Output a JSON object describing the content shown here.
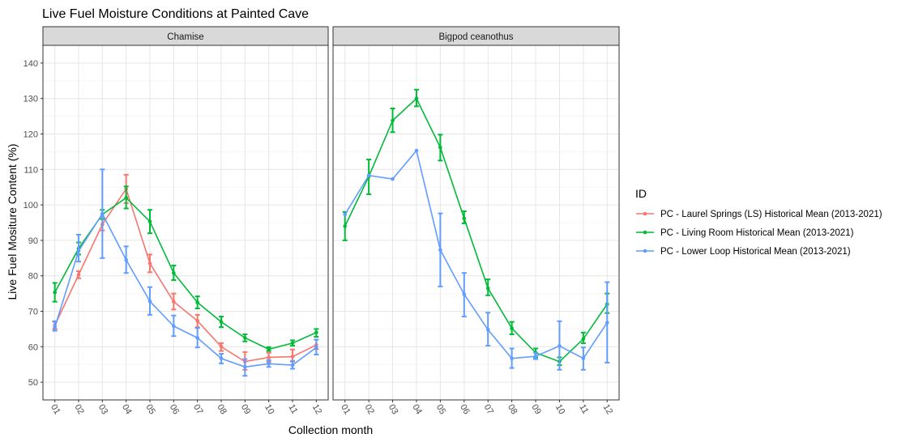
{
  "chart_data": {
    "type": "line",
    "title": "Live Fuel Moisture Conditions at Painted Cave",
    "xlabel": "Collection month",
    "ylabel": "Live Fuel Mositure Content (%)",
    "ylim": [
      45,
      145
    ],
    "yticks": [
      50,
      60,
      70,
      80,
      90,
      100,
      110,
      120,
      130,
      140
    ],
    "categories": [
      "01",
      "02",
      "03",
      "04",
      "05",
      "06",
      "07",
      "08",
      "09",
      "10",
      "11",
      "12"
    ],
    "grid": true,
    "legend": {
      "title": "ID",
      "position": "right",
      "entries": [
        "PC - Laurel Springs (LS) Historical Mean (2013-2021)",
        "PC - Living Room Historical Mean (2013-2021)",
        "PC - Lower Loop Historical Mean (2013-2021)"
      ]
    },
    "panels": [
      {
        "name": "Chamise",
        "series": [
          {
            "name": "PC - Laurel Springs (LS) Historical Mean (2013-2021)",
            "color": "#F8766D",
            "values": [
              66,
              80.3,
              94.5,
              104.5,
              83.5,
              72.7,
              67.3,
              60,
              55.8,
              57,
              57.2,
              60.5
            ],
            "err_low": [
              65,
              79.3,
              92.8,
              100.5,
              81,
              70.5,
              65.5,
              58.8,
              53.5,
              55.7,
              55.8,
              59.3
            ],
            "err_high": [
              67,
              81.3,
              96,
              108.5,
              86,
              75,
              69,
              61,
              58.5,
              58.3,
              59.2,
              62
            ]
          },
          {
            "name": "PC - Living Room Historical Mean (2013-2021)",
            "color": "#00BA38",
            "values": [
              75.3,
              87.7,
              97.3,
              102,
              95.3,
              80.8,
              72.5,
              67,
              62.5,
              59.3,
              61,
              64
            ],
            "err_low": [
              72.7,
              86,
              96,
              99,
              92,
              78.8,
              70.8,
              65.5,
              61.5,
              58.8,
              60.3,
              62.8
            ],
            "err_high": [
              78,
              89.4,
              98.6,
              105.2,
              98.6,
              82.9,
              74.2,
              68.5,
              63.5,
              59.9,
              61.8,
              65
            ]
          },
          {
            "name": "PC - Lower Loop Historical Mean (2013-2021)",
            "color": "#619CFF",
            "values": [
              65.5,
              87,
              97.5,
              84.5,
              72.8,
              65.8,
              62.5,
              56.7,
              54.3,
              55.2,
              54.8,
              59.8
            ],
            "err_low": [
              64.5,
              84,
              85,
              80.8,
              69,
              63,
              59.8,
              55.3,
              51.8,
              54.3,
              53.8,
              57.8
            ],
            "err_high": [
              67.2,
              91.6,
              110,
              88.3,
              76.8,
              68.8,
              65.3,
              58,
              56.5,
              56.2,
              56,
              62
            ]
          }
        ]
      },
      {
        "name": "Bigpod ceanothus",
        "series": [
          {
            "name": "PC - Living Room Historical Mean (2013-2021)",
            "color": "#00BA38",
            "values": [
              94,
              108,
              123.8,
              130,
              116.2,
              96.2,
              76.5,
              65.2,
              58.3,
              55.8,
              62.2,
              72
            ],
            "err_low": [
              90,
              103,
              120.5,
              127.8,
              112.5,
              94.8,
              74.5,
              63.5,
              57,
              54.8,
              61,
              69.5
            ],
            "err_high": [
              98,
              112.8,
              127.2,
              132.5,
              119.8,
              98.2,
              79,
              67,
              59.5,
              57,
              64,
              75
            ]
          },
          {
            "name": "PC - Lower Loop Historical Mean (2013-2021)",
            "color": "#619CFF",
            "values": [
              97.3,
              108.3,
              107.3,
              115.3,
              87.3,
              74.8,
              64.8,
              56.7,
              57.3,
              60.2,
              56.7,
              66.8
            ],
            "err_low": [
              97.3,
              108.3,
              107.3,
              115.3,
              77,
              68.5,
              60.3,
              54,
              56.5,
              53.5,
              53.5,
              55.5
            ],
            "err_high": [
              97.3,
              108.3,
              107.3,
              115.3,
              97.6,
              80.8,
              69.6,
              59.5,
              58.3,
              67.2,
              59.8,
              78.2
            ]
          }
        ]
      }
    ]
  }
}
